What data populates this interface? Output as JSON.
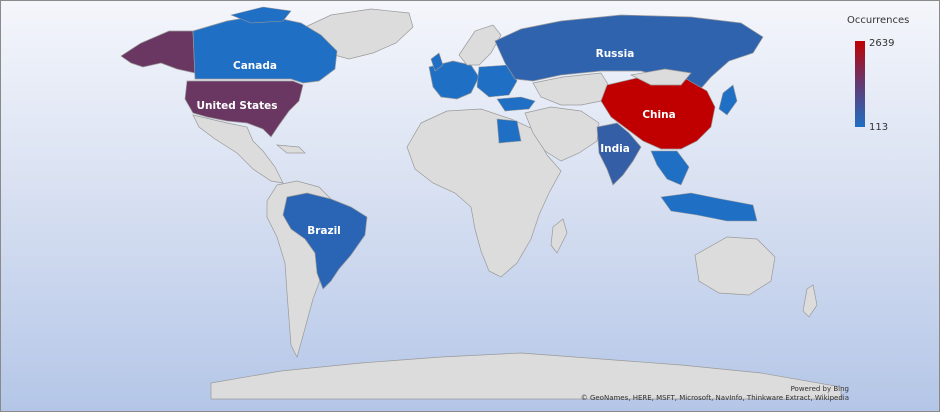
{
  "legend": {
    "title": "Occurrences",
    "max_value": "2639",
    "min_value": "113",
    "max_color": "#c00000",
    "mid_color": "#6c3468",
    "min_color": "#1f6fc4"
  },
  "countries": [
    {
      "name": "Canada",
      "label": "Canada",
      "color": "#1f6fc4"
    },
    {
      "name": "United States",
      "label": "United States",
      "color": "#6a3762"
    },
    {
      "name": "Brazil",
      "label": "Brazil",
      "color": "#2a64b4"
    },
    {
      "name": "Russia",
      "label": "Russia",
      "color": "#2f63ae"
    },
    {
      "name": "China",
      "label": "China",
      "color": "#c00000"
    },
    {
      "name": "India",
      "label": "India",
      "color": "#345ea6"
    },
    {
      "name": "Alaska",
      "label": "",
      "color": "#6a3762"
    },
    {
      "name": "Other highlighted countries",
      "label": "",
      "color": "#1f6fc4"
    }
  ],
  "credits": {
    "line1": "Powered by Bing",
    "line2": "© GeoNames, HERE, MSFT, Microsoft, NavInfo, Thinkware Extract, Wikipedia"
  },
  "land_color": "#dcdcdc"
}
